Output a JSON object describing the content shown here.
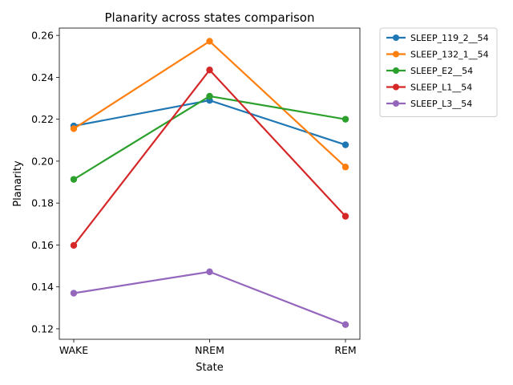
{
  "chart_data": {
    "type": "line",
    "title": "Planarity across states comparison",
    "xlabel": "State",
    "ylabel": "Planarity",
    "categories": [
      "WAKE",
      "NREM",
      "REM"
    ],
    "ylim": [
      0.115,
      0.2635
    ],
    "yticks": [
      "0.12",
      "0.14",
      "0.16",
      "0.18",
      "0.20",
      "0.22",
      "0.24",
      "0.26"
    ],
    "grid": false,
    "legend_placement": "outside upper right",
    "series": [
      {
        "name": "SLEEP_119_2__54",
        "color": "#1f77b4",
        "values": [
          0.2168,
          0.229,
          0.2078
        ]
      },
      {
        "name": "SLEEP_132_1__54",
        "color": "#ff7f0e",
        "values": [
          0.2155,
          0.2572,
          0.1972
        ]
      },
      {
        "name": "SLEEP_E2__54",
        "color": "#2ca02c",
        "values": [
          0.1913,
          0.231,
          0.22
        ]
      },
      {
        "name": "SLEEP_L1__54",
        "color": "#d62728",
        "values": [
          0.1598,
          0.2435,
          0.1737
        ]
      },
      {
        "name": "SLEEP_L3__54",
        "color": "#9467bd",
        "values": [
          0.137,
          0.1472,
          0.122
        ]
      }
    ]
  }
}
